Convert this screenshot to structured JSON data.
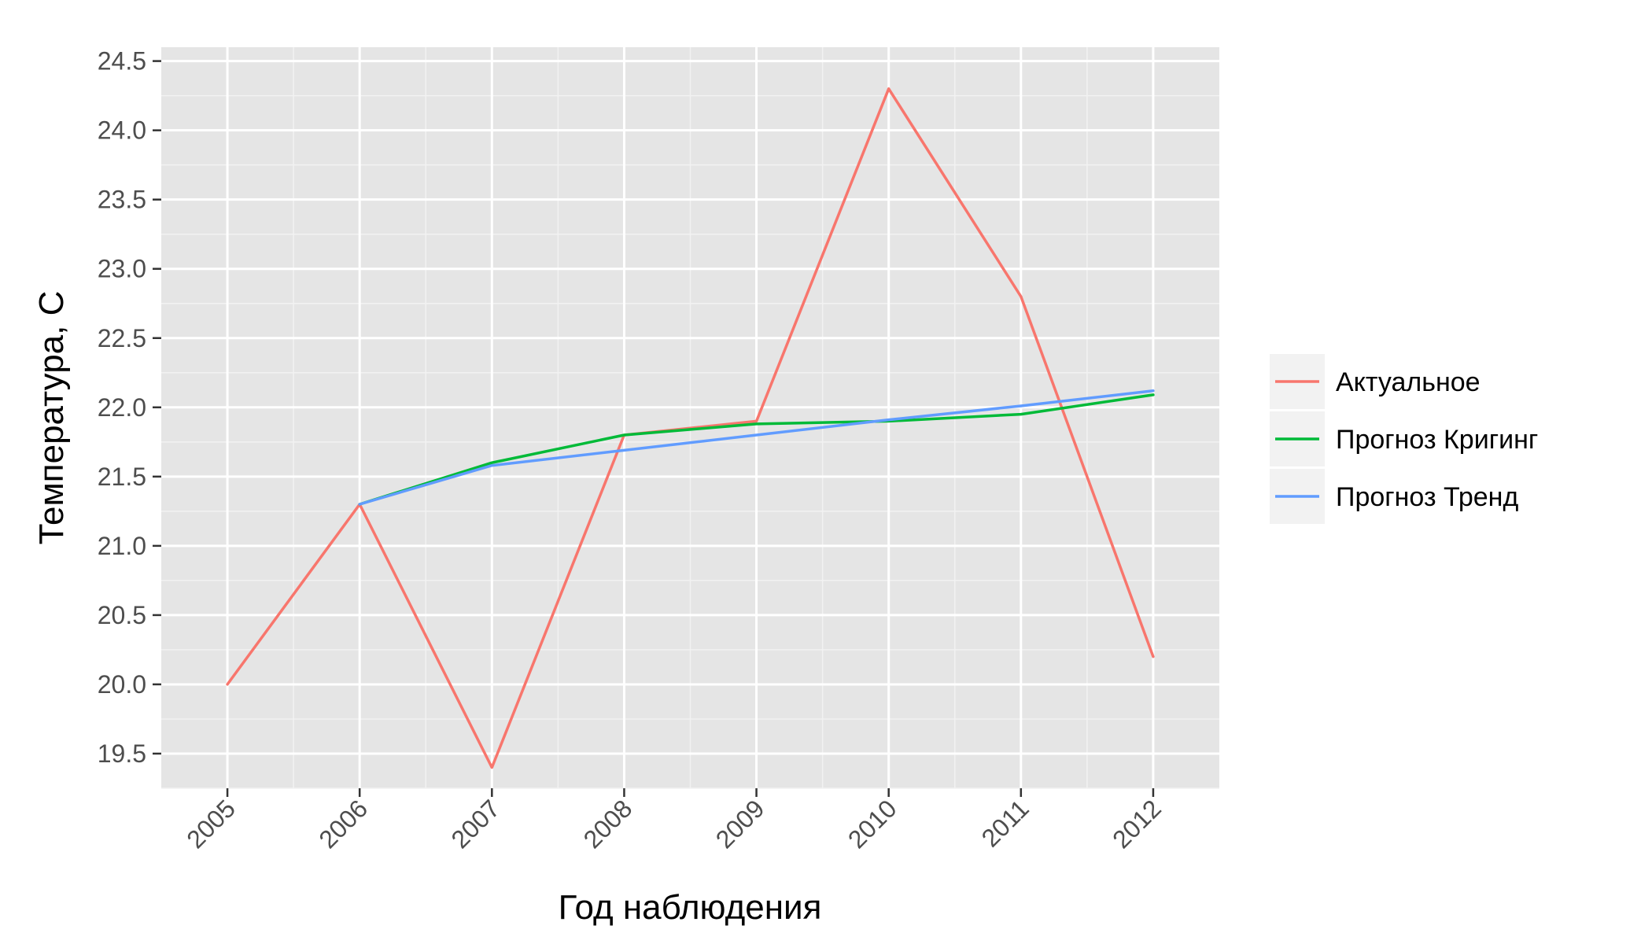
{
  "chart_data": {
    "type": "line",
    "title": "",
    "xlabel": "Год наблюдения",
    "ylabel": "Температура, С",
    "x": [
      "2005",
      "2006",
      "2007",
      "2008",
      "2009",
      "2010",
      "2011",
      "2012"
    ],
    "ylim": [
      19.25,
      24.6
    ],
    "yticks": [
      "19.5",
      "20.0",
      "20.5",
      "21.0",
      "21.5",
      "22.0",
      "22.5",
      "23.0",
      "23.5",
      "24.0",
      "24.5"
    ],
    "grid": true,
    "legend_position": "right",
    "series": [
      {
        "name": "Актуальное",
        "color": "#F8766D",
        "values": [
          20.0,
          21.3,
          19.4,
          21.8,
          21.9,
          24.3,
          22.8,
          20.2
        ]
      },
      {
        "name": "Прогноз Кригинг",
        "color": "#00BA38",
        "values": [
          null,
          21.3,
          21.6,
          21.8,
          21.88,
          21.9,
          21.95,
          22.09
        ]
      },
      {
        "name": "Прогноз Тренд",
        "color": "#619CFF",
        "values": [
          null,
          21.3,
          21.58,
          21.69,
          21.8,
          21.91,
          22.01,
          22.12
        ]
      }
    ]
  }
}
